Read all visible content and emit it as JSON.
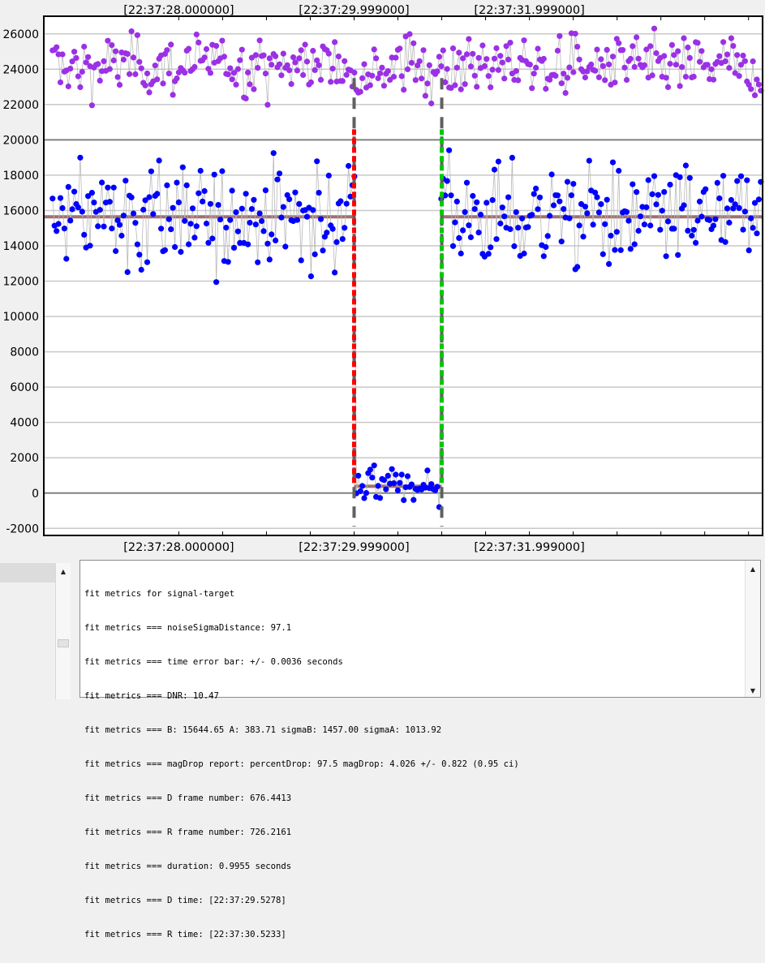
{
  "chart_data": {
    "type": "scatter",
    "ylim": [
      -2400,
      27000
    ],
    "xlim": [
      -1.77,
      2.33
    ],
    "yticks": [
      -2000,
      0,
      2000,
      4000,
      6000,
      8000,
      10000,
      12000,
      14000,
      16000,
      18000,
      20000,
      22000,
      24000,
      26000
    ],
    "ytick_labels": [
      "-2000",
      "0",
      "2000",
      "4000",
      "6000",
      "8000",
      "10000",
      "12000",
      "14000",
      "16000",
      "18000",
      "20000",
      "22000",
      "24000",
      "26000"
    ],
    "time_labels_top": [
      "[22:37:28.000000]",
      "[22:37:29.999000]",
      "[22:37:31.999000]"
    ],
    "time_labels_bottom": [
      "[22:37:28.000000]",
      "[22:37:29.999000]",
      "[22:37:31.999000]"
    ],
    "time_label_x": [
      -1,
      0,
      1
    ],
    "grid": true,
    "model": {
      "B": 15644.65,
      "A": 383.71,
      "D_x": 0,
      "R_x": 0.5
    },
    "colors": {
      "target": "#0000ff",
      "comparison": "#9b30e6",
      "model": "#a07070",
      "d_edge": "#ff0000",
      "r_edge": "#00c800",
      "error_bar": "#606060",
      "connector": "#b8b8b8"
    }
  },
  "log": {
    "lines": [
      "fit metrics for signal-target",
      "fit metrics === noiseSigmaDistance: 97.1",
      "fit metrics === time error bar: +/- 0.0036 seconds",
      "fit metrics === DNR: 10.47",
      "fit metrics === B: 15644.65 A: 383.71 sigmaB: 1457.00 sigmaA: 1013.92",
      "fit metrics === magDrop report: percentDrop: 97.5 magDrop: 4.026 +/- 0.822 (0.95 ci)",
      "fit metrics === D frame number: 676.4413",
      "fit metrics === R frame number: 726.2161",
      "fit metrics === duration: 0.9955 seconds",
      "fit metrics === D time: [22:37:29.5278]",
      "fit metrics === R time: [22:37:30.5233]"
    ]
  },
  "icons": {
    "scroll_up": "scroll-up-arrow-icon",
    "scroll_down": "scroll-down-arrow-icon"
  }
}
